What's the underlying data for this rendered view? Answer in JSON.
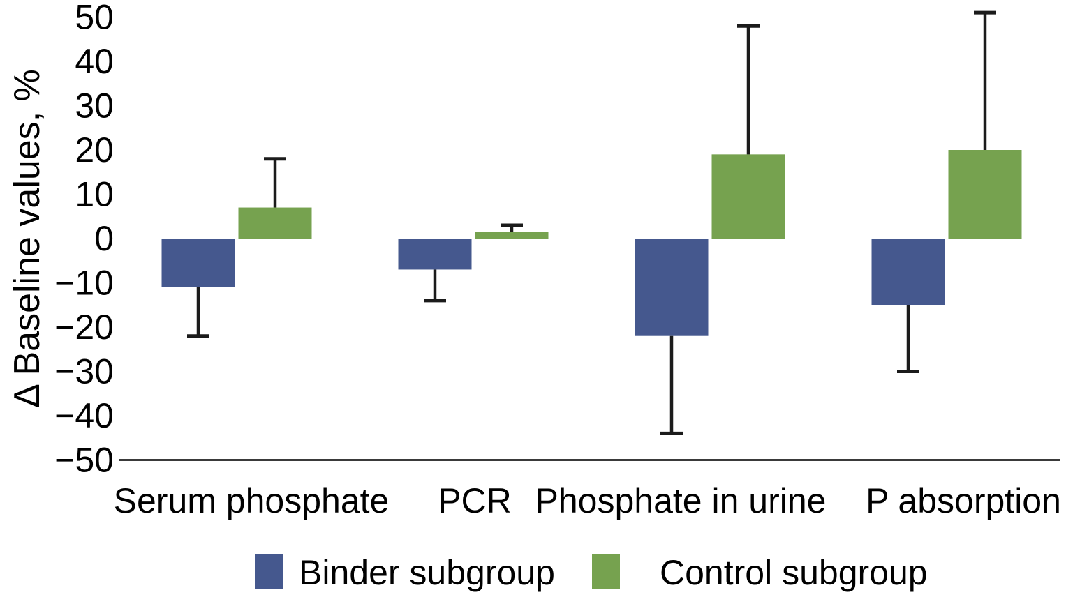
{
  "chart_data": {
    "type": "bar",
    "title": "",
    "xlabel": "",
    "ylabel": "Δ Baseline values, %",
    "ylim": [
      -50,
      50
    ],
    "yticks": [
      50,
      40,
      30,
      20,
      10,
      0,
      -10,
      -20,
      -30,
      -40,
      -50
    ],
    "grid": false,
    "legend_position": "bottom",
    "categories": [
      "Serum phosphate",
      "PCR",
      "Phosphate in urine",
      "P absorption"
    ],
    "series": [
      {
        "name": "Binder subgroup",
        "color": "#45588e",
        "values": [
          -11,
          -7,
          -22,
          -15
        ],
        "error": [
          11,
          7,
          22,
          15
        ],
        "error_direction": "away-from-zero"
      },
      {
        "name": "Control subgroup",
        "color": "#76a24f",
        "values": [
          7,
          1.5,
          19,
          20
        ],
        "error": [
          11,
          1.5,
          29,
          31
        ],
        "error_direction": "away-from-zero"
      }
    ],
    "colors": {
      "axis_line": "#3a3a3a",
      "error_bar": "#1b1b1b",
      "text": "#000000"
    }
  }
}
